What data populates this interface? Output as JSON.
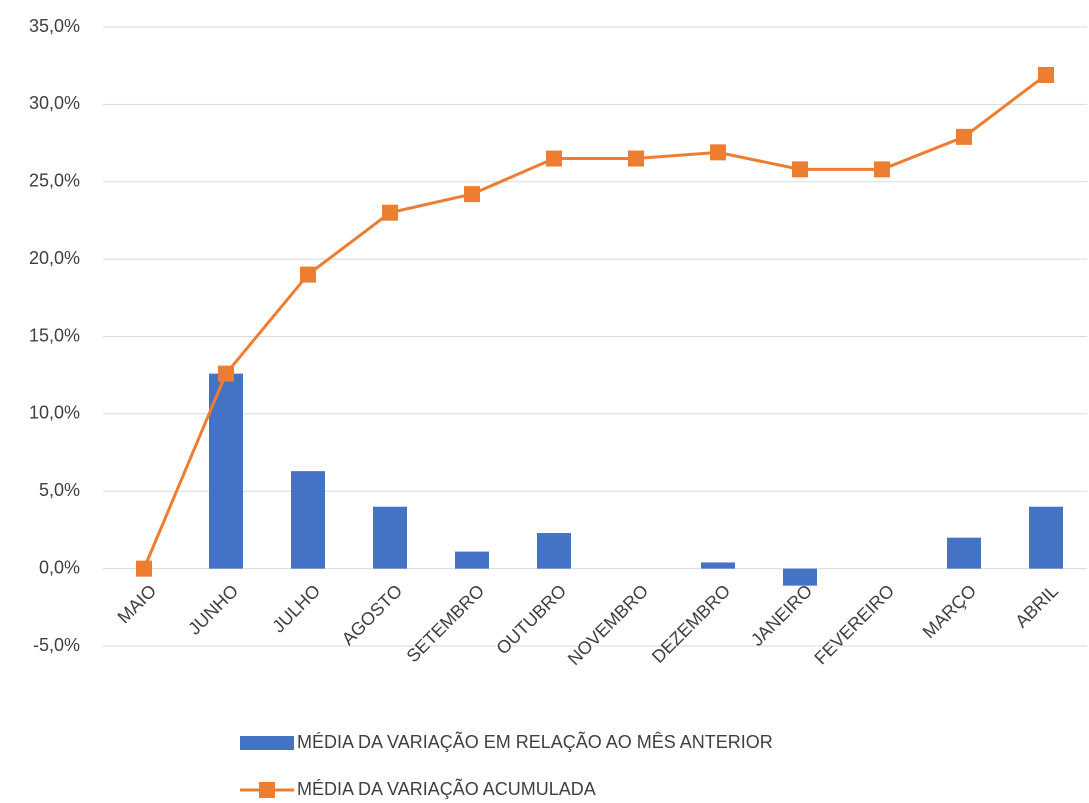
{
  "chart_data": {
    "type": "bar-line",
    "categories": [
      "MAIO",
      "JUNHO",
      "JULHO",
      "AGOSTO",
      "SETEMBRO",
      "OUTUBRO",
      "NOVEMBRO",
      "DEZEMBRO",
      "JANEIRO",
      "FEVEREIRO",
      "MARÇO",
      "ABRIL"
    ],
    "series": [
      {
        "name": "MÉDIA DA VARIAÇÃO EM RELAÇÃO AO MÊS ANTERIOR",
        "type": "bar",
        "color": "#4472c4",
        "values": [
          0,
          12.6,
          6.3,
          4.0,
          1.1,
          2.3,
          0,
          0.4,
          -1.1,
          0,
          2.0,
          4.0
        ]
      },
      {
        "name": "MÉDIA DA VARIAÇÃO ACUMULADA",
        "type": "line",
        "color": "#ed7d31",
        "values": [
          0,
          12.6,
          19.0,
          23.0,
          24.2,
          26.5,
          26.5,
          26.9,
          25.8,
          25.8,
          27.9,
          31.9
        ]
      }
    ],
    "ylim": [
      -5,
      35
    ],
    "yticks": [
      {
        "value": -5,
        "label": "-5,0%"
      },
      {
        "value": 0,
        "label": "0,0%"
      },
      {
        "value": 5,
        "label": "5,0%"
      },
      {
        "value": 10,
        "label": "10,0%"
      },
      {
        "value": 15,
        "label": "15,0%"
      },
      {
        "value": 20,
        "label": "20,0%"
      },
      {
        "value": 25,
        "label": "25,0%"
      },
      {
        "value": 30,
        "label": "30,0%"
      },
      {
        "value": 35,
        "label": "35,0%"
      }
    ],
    "grid": true,
    "legend": "bottom"
  }
}
